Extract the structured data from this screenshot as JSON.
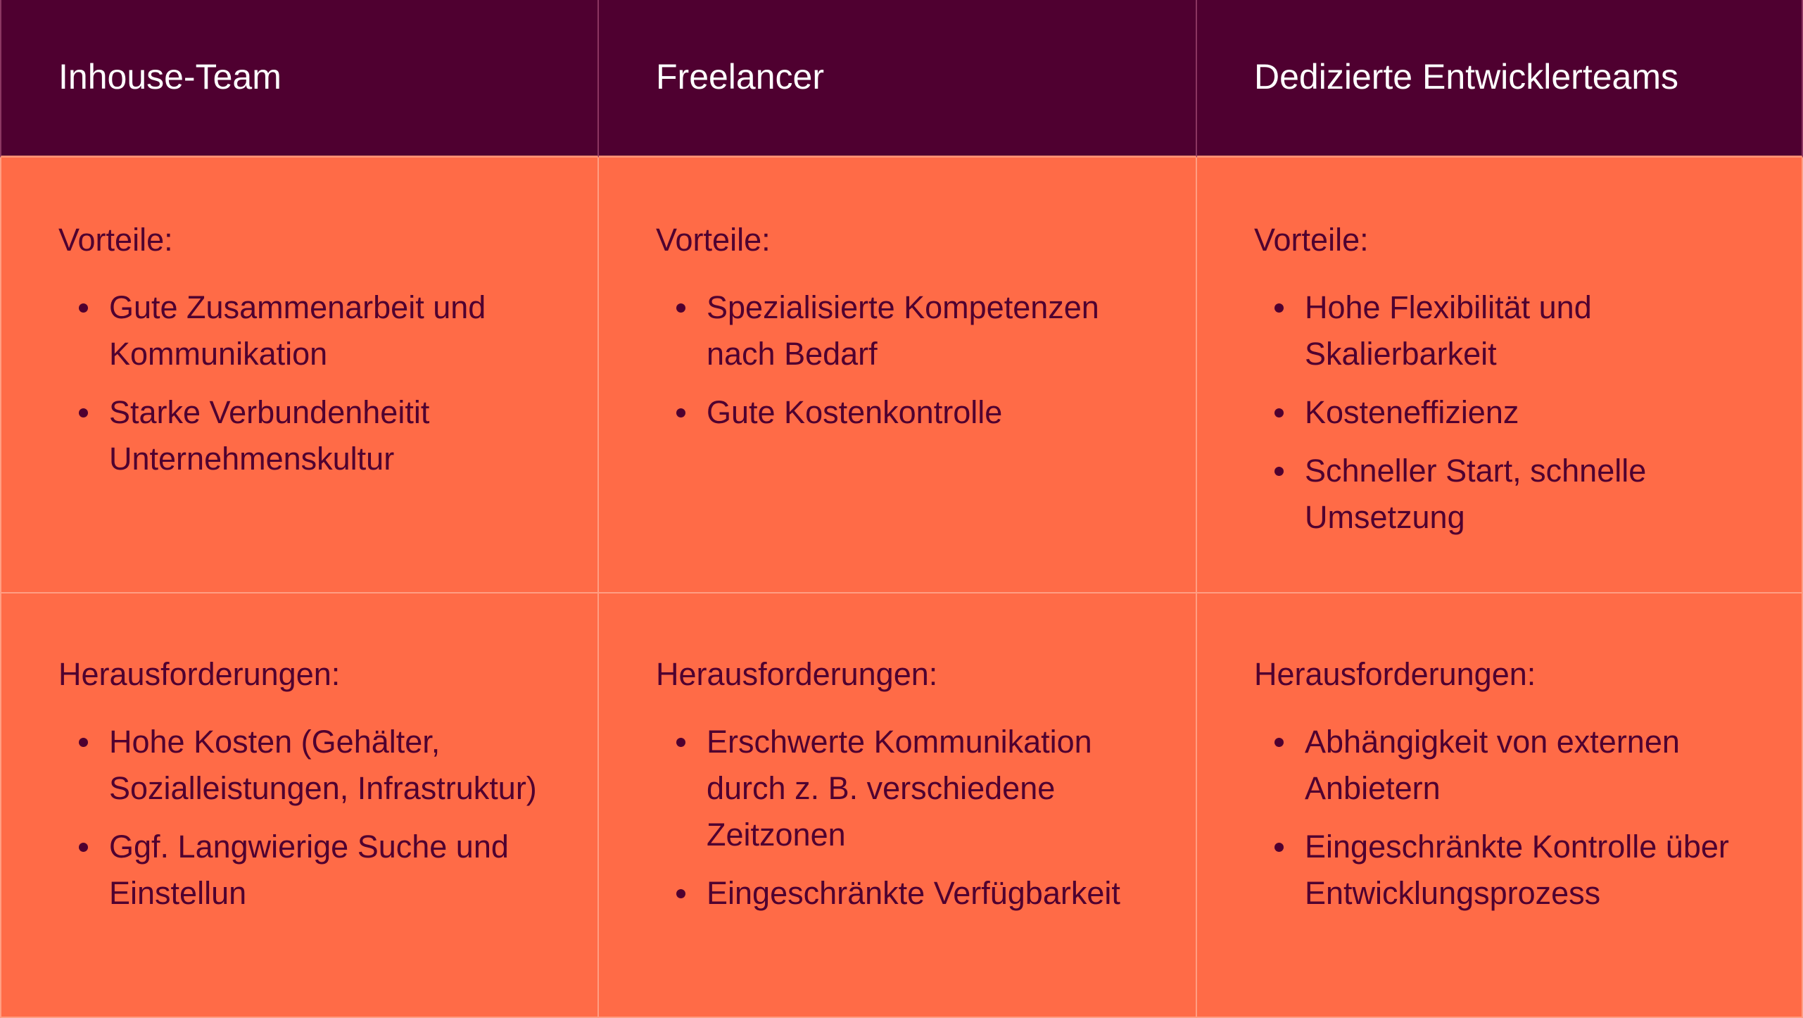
{
  "colors": {
    "header_bg": "#4f0030",
    "body_bg": "#ff6b47",
    "header_text": "#ffffff",
    "body_text": "#4f0030"
  },
  "columns": [
    {
      "title": "Inhouse-Team",
      "pros_label": "Vorteile:",
      "pros": [
        "Gute Zusammenarbeit und Kommunikation",
        "Starke Verbundenheitit Unternehmenskultur"
      ],
      "cons_label": "Herausforderungen:",
      "cons": [
        "Hohe Kosten (Gehälter, Sozialleistungen, Infrastruktur)",
        "Ggf. Langwierige Suche und Einstellun"
      ]
    },
    {
      "title": "Freelancer",
      "pros_label": "Vorteile:",
      "pros": [
        "Spezialisierte Kompetenzen nach Bedarf",
        "Gute Kostenkontrolle"
      ],
      "cons_label": "Herausforderungen:",
      "cons": [
        "Erschwerte Kommunikation durch z. B. verschiedene Zeitzonen",
        "Eingeschränkte Verfügbarkeit"
      ]
    },
    {
      "title": "Dedizierte Entwicklerteams",
      "pros_label": "Vorteile:",
      "pros": [
        "Hohe Flexibilität und Skalierbarkeit",
        "Kosteneffizienz",
        "Schneller Start, schnelle Umsetzung"
      ],
      "cons_label": "Herausforderungen:",
      "cons": [
        "Abhängigkeit von externen Anbietern",
        "Eingeschränkte Kontrolle über Entwicklungsprozess"
      ]
    }
  ]
}
